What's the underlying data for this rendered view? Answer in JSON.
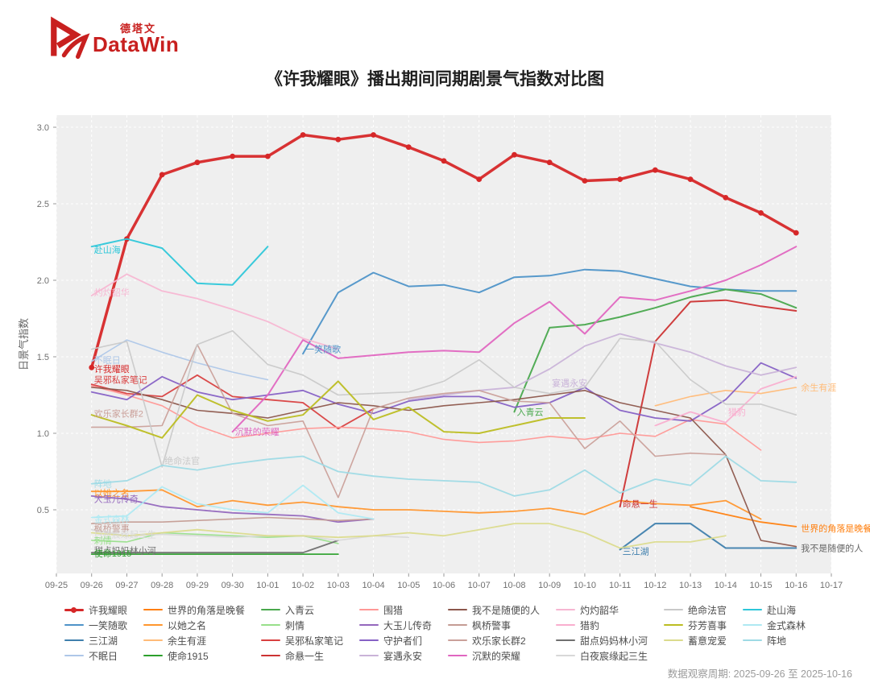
{
  "logo": {
    "brand_cn": "德塔文",
    "brand_en": "DataWin",
    "color": "#c8201f"
  },
  "title": "《许我耀眼》播出期间同期剧景气指数对比图",
  "footer": {
    "observation_period": "数据观察周期: 2025-09-26 至 2025-10-16"
  },
  "chart_data": {
    "type": "line",
    "title": "《许我耀眼》播出期间同期剧景气指数对比图",
    "xlabel": "",
    "ylabel": "日景气指数",
    "x_ticks": [
      "09-25",
      "09-26",
      "09-27",
      "09-28",
      "09-29",
      "09-30",
      "10-01",
      "10-02",
      "10-03",
      "10-04",
      "10-05",
      "10-06",
      "10-07",
      "10-08",
      "10-09",
      "10-10",
      "10-11",
      "10-12",
      "10-13",
      "10-14",
      "10-15",
      "10-16",
      "10-17"
    ],
    "dates": [
      "09-26",
      "09-27",
      "09-28",
      "09-29",
      "09-30",
      "10-01",
      "10-02",
      "10-03",
      "10-04",
      "10-05",
      "10-06",
      "10-07",
      "10-08",
      "10-09",
      "10-10",
      "10-11",
      "10-12",
      "10-13",
      "10-14",
      "10-15",
      "10-16"
    ],
    "y_ticks": [
      0.5,
      1.0,
      1.5,
      2.0,
      2.5,
      3.0
    ],
    "ylim": [
      0.08,
      3.08
    ],
    "grid": true,
    "panel_color": "#efefef",
    "legend_position": "bottom",
    "series": [
      {
        "name": "许我耀眼",
        "color": "#d62728",
        "width": 3.5,
        "markers": true,
        "start": 0,
        "values": [
          1.43,
          2.27,
          2.69,
          2.77,
          2.81,
          2.81,
          2.95,
          2.92,
          2.95,
          2.87,
          2.78,
          2.66,
          2.82,
          2.77,
          2.65,
          2.66,
          2.72,
          2.66,
          2.54,
          2.44,
          2.31
        ]
      },
      {
        "name": "一笑随歌",
        "color": "#4e93c8",
        "width": 2,
        "markers": false,
        "start": 6,
        "values": [
          1.52,
          1.92,
          2.05,
          1.96,
          1.97,
          1.92,
          2.02,
          2.03,
          2.07,
          2.06,
          2.01,
          1.96,
          1.94,
          1.93,
          1.93
        ]
      },
      {
        "name": "三江湖",
        "color": "#3f7fad",
        "width": 2,
        "markers": false,
        "start": 15,
        "values": [
          0.24,
          0.41,
          0.41,
          0.25,
          0.25,
          0.25
        ]
      },
      {
        "name": "不眠日",
        "color": "#aec7e8",
        "width": 1.6,
        "markers": false,
        "start": 0,
        "values": [
          1.47,
          1.61,
          1.53,
          1.46,
          1.4,
          1.35
        ]
      },
      {
        "name": "世界的角落是晚餐",
        "color": "#ff7f0e",
        "width": 1.8,
        "markers": false,
        "start": 17,
        "values": [
          0.52,
          0.47,
          0.42,
          0.39
        ]
      },
      {
        "name": "以她之名",
        "color": "#ff962e",
        "width": 1.8,
        "markers": false,
        "start": 0,
        "values": [
          0.62,
          0.62,
          0.63,
          0.52,
          0.56,
          0.53,
          0.55,
          0.52,
          0.5,
          0.5,
          0.49,
          0.48,
          0.49,
          0.51,
          0.47,
          0.56,
          0.54,
          0.53,
          0.56,
          0.44
        ]
      },
      {
        "name": "余生有涯",
        "color": "#ffbb78",
        "width": 1.6,
        "markers": false,
        "start": 16,
        "values": [
          1.18,
          1.24,
          1.28,
          1.26,
          1.3
        ]
      },
      {
        "name": "使命1915",
        "color": "#2ca02c",
        "width": 1.8,
        "markers": false,
        "start": 0,
        "values": [
          0.21,
          0.21,
          0.21,
          0.21,
          0.21,
          0.21,
          0.21,
          0.21
        ]
      },
      {
        "name": "入青云",
        "color": "#49a84d",
        "width": 2,
        "markers": false,
        "start": 12,
        "values": [
          1.14,
          1.69,
          1.71,
          1.76,
          1.82,
          1.89,
          1.94,
          1.91,
          1.82
        ]
      },
      {
        "name": "刺情",
        "color": "#98df8a",
        "width": 1.6,
        "markers": false,
        "start": 0,
        "values": [
          0.3,
          0.29,
          0.35,
          0.34,
          0.33,
          0.32,
          0.33,
          0.28
        ]
      },
      {
        "name": "吴邪私家笔记",
        "color": "#d84040",
        "width": 1.8,
        "markers": false,
        "start": 0,
        "values": [
          1.32,
          1.26,
          1.24,
          1.38,
          1.24,
          1.22,
          1.2,
          1.03,
          1.16
        ]
      },
      {
        "name": "命悬一生",
        "color": "#cc3333",
        "width": 2,
        "markers": false,
        "start": 15,
        "values": [
          0.52,
          1.6,
          1.86,
          1.87,
          1.83,
          1.8
        ]
      },
      {
        "name": "围猎",
        "color": "#ff9896",
        "width": 1.6,
        "markers": false,
        "start": 0,
        "values": [
          1.31,
          1.25,
          1.18,
          1.05,
          0.97,
          1.0,
          1.03,
          1.04,
          1.03,
          1.01,
          0.96,
          0.94,
          0.95,
          0.98,
          0.96,
          1.0,
          0.98,
          1.09,
          1.06,
          0.89
        ]
      },
      {
        "name": "大玉儿传奇",
        "color": "#9467bd",
        "width": 1.8,
        "markers": false,
        "start": 0,
        "values": [
          0.59,
          0.57,
          0.52,
          0.5,
          0.48,
          0.47,
          0.46,
          0.42,
          0.44
        ]
      },
      {
        "name": "守护者们",
        "color": "#8661c5",
        "width": 1.8,
        "markers": false,
        "start": 0,
        "values": [
          1.27,
          1.22,
          1.37,
          1.27,
          1.22,
          1.25,
          1.28,
          1.19,
          1.13,
          1.21,
          1.24,
          1.24,
          1.17,
          1.2,
          1.3,
          1.15,
          1.1,
          1.08,
          1.22,
          1.46,
          1.36
        ]
      },
      {
        "name": "宴遇永安",
        "color": "#c9b3d8",
        "width": 1.8,
        "markers": false,
        "start": 9,
        "values": [
          1.22,
          1.25,
          1.28,
          1.3,
          1.42,
          1.57,
          1.65,
          1.59,
          1.53,
          1.44,
          1.38,
          1.43
        ]
      },
      {
        "name": "我不是随便的人",
        "color": "#8c564b",
        "width": 1.6,
        "markers": false,
        "start": 0,
        "values": [
          1.3,
          1.28,
          1.22,
          1.15,
          1.13,
          1.1,
          1.15,
          1.2,
          1.18,
          1.15,
          1.18,
          1.2,
          1.22,
          1.25,
          1.28,
          1.2,
          1.15,
          1.1,
          0.86,
          0.3,
          0.26
        ]
      },
      {
        "name": "枫桥警事",
        "color": "#c49c94",
        "width": 1.6,
        "markers": false,
        "start": 0,
        "values": [
          0.41,
          0.42,
          0.42,
          0.43,
          0.44,
          0.45,
          0.44,
          0.43,
          0.44
        ]
      },
      {
        "name": "欢乐家长群2",
        "color": "#caa09a",
        "width": 1.6,
        "markers": false,
        "start": 0,
        "values": [
          1.04,
          1.04,
          1.05,
          1.58,
          1.13,
          1.05,
          1.08,
          0.58,
          1.16,
          1.23,
          1.26,
          1.28,
          1.21,
          1.2,
          0.9,
          1.08,
          0.85,
          0.87,
          0.86
        ]
      },
      {
        "name": "沉默的荣耀",
        "color": "#e066c0",
        "width": 2,
        "markers": false,
        "start": 4,
        "values": [
          1.01,
          1.25,
          1.61,
          1.49,
          1.51,
          1.53,
          1.54,
          1.53,
          1.72,
          1.86,
          1.65,
          1.89,
          1.87,
          1.93,
          2.0,
          2.1,
          2.22
        ]
      },
      {
        "name": "灼灼韶华",
        "color": "#f7b6d2",
        "width": 1.8,
        "markers": false,
        "start": 0,
        "values": [
          1.9,
          2.04,
          1.93,
          1.88,
          1.81,
          1.73,
          1.62,
          1.55
        ]
      },
      {
        "name": "猎豹",
        "color": "#f9aecf",
        "width": 1.8,
        "markers": false,
        "start": 16,
        "values": [
          1.05,
          1.14,
          1.07,
          1.29,
          1.37
        ]
      },
      {
        "name": "甜点妈妈林小河",
        "color": "#6f6f6f",
        "width": 1.8,
        "markers": false,
        "start": 0,
        "values": [
          0.22,
          0.22,
          0.22,
          0.22,
          0.22,
          0.22,
          0.22,
          0.3
        ]
      },
      {
        "name": "白夜宸缘起三生",
        "color": "#d8d8d8",
        "width": 1.6,
        "markers": false,
        "start": 0,
        "values": [
          0.37,
          0.33,
          0.34,
          0.33,
          0.32,
          0.33,
          0.33,
          0.3,
          0.33,
          0.32
        ]
      },
      {
        "name": "绝命法官",
        "color": "#c9c9c9",
        "width": 1.6,
        "markers": false,
        "start": 0,
        "values": [
          1.55,
          1.6,
          0.78,
          1.58,
          1.67,
          1.45,
          1.38,
          1.25,
          1.26,
          1.27,
          1.34,
          1.48,
          1.3,
          1.26,
          1.3,
          1.62,
          1.6,
          1.35,
          1.19,
          1.19,
          1.12
        ]
      },
      {
        "name": "芬芳喜事",
        "color": "#bcbd22",
        "width": 2,
        "markers": false,
        "start": 0,
        "values": [
          1.12,
          1.05,
          0.97,
          1.25,
          1.15,
          1.08,
          1.12,
          1.34,
          1.09,
          1.17,
          1.01,
          1.0,
          1.05,
          1.1,
          1.1
        ]
      },
      {
        "name": "蓄意宠爱",
        "color": "#dbdb8d",
        "width": 1.8,
        "markers": false,
        "start": 0,
        "values": [
          0.35,
          0.33,
          0.35,
          0.37,
          0.35,
          0.33,
          0.33,
          0.32,
          0.33,
          0.35,
          0.33,
          0.37,
          0.41,
          0.41,
          0.35,
          0.25,
          0.29,
          0.29,
          0.33
        ]
      },
      {
        "name": "赴山海",
        "color": "#2ec7d9",
        "width": 2,
        "markers": false,
        "start": 0,
        "values": [
          2.22,
          2.27,
          2.21,
          1.98,
          1.97,
          2.22
        ]
      },
      {
        "name": "金式森林",
        "color": "#aee9f2",
        "width": 1.8,
        "markers": false,
        "start": 0,
        "values": [
          0.45,
          0.46,
          0.65,
          0.54,
          0.5,
          0.48,
          0.66,
          0.48,
          0.44
        ]
      },
      {
        "name": "阵地",
        "color": "#9edae5",
        "width": 1.8,
        "markers": false,
        "start": 0,
        "values": [
          0.67,
          0.69,
          0.79,
          0.76,
          0.8,
          0.83,
          0.85,
          0.75,
          0.72,
          0.7,
          0.69,
          0.68,
          0.59,
          0.63,
          0.76,
          0.61,
          0.7,
          0.66,
          0.85,
          0.69,
          0.68
        ]
      }
    ],
    "annotations": [
      {
        "text": "赴山海",
        "date": "09-26",
        "value": 2.2,
        "color": "#2ec7d9"
      },
      {
        "text": "灼灼韶华",
        "date": "09-26",
        "value": 1.92,
        "color": "#f7b6d2"
      },
      {
        "text": "不眠日",
        "date": "09-26",
        "value": 1.48,
        "color": "#aec7e8"
      },
      {
        "text": "许我耀眼",
        "date": "09-26",
        "value": 1.42,
        "color": "#d62728"
      },
      {
        "text": "吴邪私家笔记",
        "date": "09-26",
        "value": 1.35,
        "color": "#d84040"
      },
      {
        "text": "欢乐家长群2",
        "date": "09-26",
        "value": 1.13,
        "color": "#caa09a"
      },
      {
        "text": "阵地",
        "date": "09-26",
        "value": 0.67,
        "color": "#9edae5"
      },
      {
        "text": "以她之名",
        "date": "09-26",
        "value": 0.61,
        "color": "#ff962e"
      },
      {
        "text": "大玉儿传奇",
        "date": "09-26",
        "value": 0.57,
        "color": "#9467bd"
      },
      {
        "text": "金式森林",
        "date": "09-26",
        "value": 0.44,
        "color": "#aee9f2"
      },
      {
        "text": "枫桥警事",
        "date": "09-26",
        "value": 0.38,
        "color": "#c49c94"
      },
      {
        "text": "白夜宸缘起三生",
        "date": "09-26",
        "value": 0.34,
        "color": "#d8d8d8"
      },
      {
        "text": "刺情",
        "date": "09-26",
        "value": 0.3,
        "color": "#98df8a"
      },
      {
        "text": "甜点妈妈林小河",
        "date": "09-26",
        "value": 0.235,
        "color": "#6f6f6f"
      },
      {
        "text": "使命1915",
        "date": "09-26",
        "value": 0.215,
        "color": "#2ca02c"
      },
      {
        "text": "绝命法官",
        "date": "09-28",
        "value": 0.82,
        "color": "#c9c9c9"
      },
      {
        "text": "沉默的荣耀",
        "date": "09-30",
        "value": 1.01,
        "color": "#e066c0"
      },
      {
        "text": "一笑随歌",
        "date": "10-02",
        "value": 1.55,
        "color": "#4e93c8"
      },
      {
        "text": "入青云",
        "date": "10-08",
        "value": 1.14,
        "color": "#49a84d"
      },
      {
        "text": "宴遇永安",
        "date": "10-09",
        "value": 1.33,
        "color": "#c9b3d8"
      },
      {
        "text": "命悬一生",
        "date": "10-11",
        "value": 0.54,
        "color": "#cc3333"
      },
      {
        "text": "三江湖",
        "date": "10-11",
        "value": 0.23,
        "color": "#3f7fad"
      },
      {
        "text": "猎豹",
        "date": "10-14",
        "value": 1.14,
        "color": "#f9aecf"
      },
      {
        "text": "余生有涯",
        "date": "10-16",
        "value": 1.3,
        "color": "#ffbb78",
        "end": true
      },
      {
        "text": "世界的角落是晚餐",
        "date": "10-16",
        "value": 0.38,
        "color": "#ff7f0e",
        "end": true
      },
      {
        "text": "我不是随便的人",
        "date": "10-16",
        "value": 0.25,
        "color": "#666666",
        "end": true
      }
    ]
  }
}
